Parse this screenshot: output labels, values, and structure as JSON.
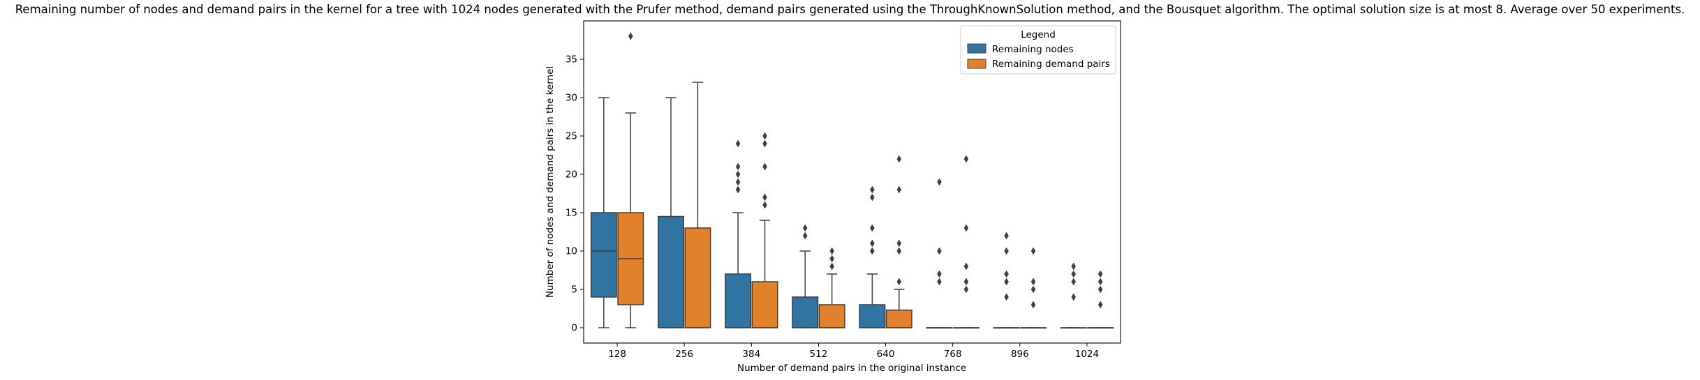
{
  "chart_data": {
    "type": "boxplot",
    "title": "Remaining number of nodes and demand pairs in the kernel for a tree with 1024 nodes generated with the Prufer method, demand pairs generated using the ThroughKnownSolution method, and the Bousquet algorithm. The optimal solution size is at most 8. Average over 50 experiments.",
    "xlabel": "Number of demand pairs in the original instance",
    "ylabel": "Number of nodes and demand pairs in the kernel",
    "categories": [
      "128",
      "256",
      "384",
      "512",
      "640",
      "768",
      "896",
      "1024"
    ],
    "ylim": [
      -2,
      40
    ],
    "yticks": [
      0,
      5,
      10,
      15,
      20,
      25,
      30,
      35
    ],
    "legend": {
      "title": "Legend",
      "placement": "top-right",
      "entries": [
        "Remaining nodes",
        "Remaining demand pairs"
      ]
    },
    "series": [
      {
        "name": "Remaining nodes",
        "color": "#3274a1",
        "boxes": [
          {
            "whislo": 0,
            "q1": 4,
            "med": 10,
            "q3": 15,
            "whishi": 30,
            "fliers": []
          },
          {
            "whislo": 0,
            "q1": 0,
            "med": 0,
            "q3": 14.5,
            "whishi": 30,
            "fliers": []
          },
          {
            "whislo": 0,
            "q1": 0,
            "med": 0,
            "q3": 7,
            "whishi": 15,
            "fliers": [
              18,
              19,
              20,
              21,
              24
            ]
          },
          {
            "whislo": 0,
            "q1": 0,
            "med": 0,
            "q3": 4,
            "whishi": 10,
            "fliers": [
              12,
              13
            ]
          },
          {
            "whislo": 0,
            "q1": 0,
            "med": 0,
            "q3": 3,
            "whishi": 7,
            "fliers": [
              10,
              11,
              13,
              17,
              18
            ]
          },
          {
            "whislo": 0,
            "q1": 0,
            "med": 0,
            "q3": 0,
            "whishi": 0,
            "fliers": [
              6,
              7,
              10,
              19
            ]
          },
          {
            "whislo": 0,
            "q1": 0,
            "med": 0,
            "q3": 0,
            "whishi": 0,
            "fliers": [
              4,
              6,
              7,
              10,
              12
            ]
          },
          {
            "whislo": 0,
            "q1": 0,
            "med": 0,
            "q3": 0,
            "whishi": 0,
            "fliers": [
              4,
              6,
              7,
              8
            ]
          }
        ]
      },
      {
        "name": "Remaining demand pairs",
        "color": "#e1812c",
        "boxes": [
          {
            "whislo": 0,
            "q1": 3,
            "med": 9,
            "q3": 15,
            "whishi": 28,
            "fliers": [
              38
            ]
          },
          {
            "whislo": 0,
            "q1": 0,
            "med": 0,
            "q3": 13,
            "whishi": 32,
            "fliers": []
          },
          {
            "whislo": 0,
            "q1": 0,
            "med": 0,
            "q3": 6,
            "whishi": 14,
            "fliers": [
              16,
              17,
              21,
              24,
              25
            ]
          },
          {
            "whislo": 0,
            "q1": 0,
            "med": 0,
            "q3": 3,
            "whishi": 7,
            "fliers": [
              8,
              9,
              10
            ]
          },
          {
            "whislo": 0,
            "q1": 0,
            "med": 0,
            "q3": 2.3,
            "whishi": 5,
            "fliers": [
              6,
              10,
              11,
              18,
              22
            ]
          },
          {
            "whislo": 0,
            "q1": 0,
            "med": 0,
            "q3": 0,
            "whishi": 0,
            "fliers": [
              5,
              6,
              8,
              13,
              22
            ]
          },
          {
            "whislo": 0,
            "q1": 0,
            "med": 0,
            "q3": 0,
            "whishi": 0,
            "fliers": [
              3,
              5,
              6,
              10
            ]
          },
          {
            "whislo": 0,
            "q1": 0,
            "med": 0,
            "q3": 0,
            "whishi": 0,
            "fliers": [
              3,
              5,
              6,
              7
            ]
          }
        ]
      }
    ]
  }
}
